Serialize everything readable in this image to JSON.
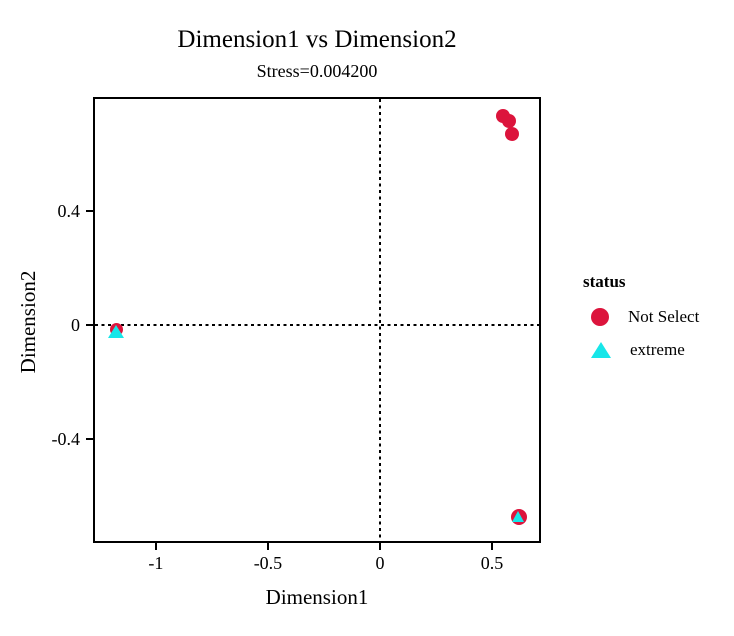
{
  "figure": {
    "title": "Dimension1 vs Dimension2",
    "subtitle": "Stress=0.004200"
  },
  "legend": {
    "title": "status",
    "items": [
      {
        "label": "Not Select",
        "marker": "circle",
        "color": "#DC143C"
      },
      {
        "label": "extreme",
        "marker": "triangle",
        "color": "#17E6E9"
      }
    ]
  },
  "chart_data": {
    "type": "scatter",
    "title": "Dimension1 vs Dimension2",
    "subtitle": "Stress=0.004200",
    "stress": 0.0042,
    "xlabel": "Dimension1",
    "ylabel": "Dimension2",
    "xlim": [
      -1.272,
      0.71
    ],
    "ylim": [
      -0.758,
      0.793
    ],
    "xticks": [
      {
        "v": -1,
        "label": "-1"
      },
      {
        "v": -0.5,
        "label": "-0.5"
      },
      {
        "v": 0,
        "label": "0"
      },
      {
        "v": 0.5,
        "label": "0.5"
      }
    ],
    "yticks": [
      {
        "v": 0.4,
        "label": "0.4"
      },
      {
        "v": 0,
        "label": "0"
      },
      {
        "v": -0.4,
        "label": "-0.4"
      }
    ],
    "grid": false,
    "zero_lines": "dotted",
    "legend_position": "right",
    "series": [
      {
        "name": "Not Select",
        "marker": "circle",
        "color": "#DC143C",
        "points": [
          {
            "x": 0.55,
            "y": 0.735,
            "size": 14
          },
          {
            "x": 0.575,
            "y": 0.715,
            "size": 14
          },
          {
            "x": 0.59,
            "y": 0.67,
            "size": 14
          },
          {
            "x": -1.175,
            "y": -0.016,
            "size": 13
          },
          {
            "x": 0.62,
            "y": -0.675,
            "size": 16
          }
        ]
      },
      {
        "name": "extreme",
        "marker": "triangle",
        "color": "#17E6E9",
        "points": [
          {
            "x": -1.178,
            "y": -0.024,
            "size": 16
          },
          {
            "x": 0.62,
            "y": -0.672,
            "size": 13
          }
        ]
      }
    ]
  }
}
